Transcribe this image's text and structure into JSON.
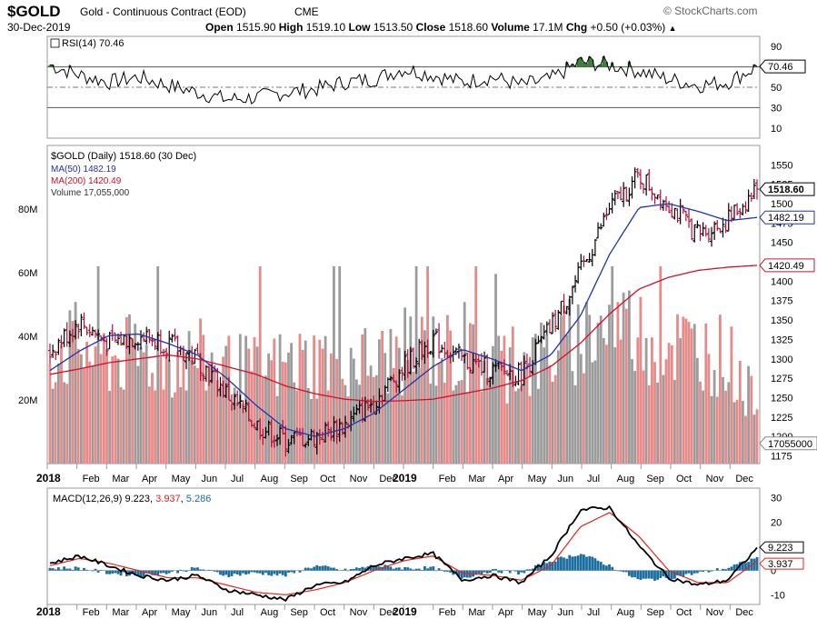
{
  "header": {
    "symbol": "$GOLD",
    "name": "Gold - Continuous Contract (EOD)",
    "exchange": "CME",
    "brand": "© StockCharts.com",
    "date": "30-Dec-2019",
    "open_label": "Open",
    "open": "1515.90",
    "high_label": "High",
    "high": "1519.10",
    "low_label": "Low",
    "low": "1513.50",
    "close_label": "Close",
    "close": "1518.60",
    "volume_label": "Volume",
    "volume": "17.1M",
    "chg_label": "Chg",
    "chg": "+0.50 (+0.03%)"
  },
  "colors": {
    "price_up": "#000000",
    "price_down": "#b0103a",
    "ma50": "#2233aa",
    "ma200": "#d0102a",
    "vol_up": "#9c9c9c",
    "vol_down": "#e88a8a",
    "macd_line": "#000000",
    "signal": "#e8231b",
    "hist": "#1a6ea0",
    "rsi_fill": "#3a7a3a"
  },
  "x_axis": {
    "labels": [
      "2018",
      "Feb",
      "Mar",
      "Apr",
      "May",
      "Jun",
      "Jul",
      "Aug",
      "Sep",
      "Oct",
      "Nov",
      "Dec",
      "2019",
      "Feb",
      "Mar",
      "Apr",
      "May",
      "Jun",
      "Jul",
      "Aug",
      "Sep",
      "Oct",
      "Nov",
      "Dec"
    ]
  },
  "chart_data": [
    {
      "type": "line",
      "title": "RSI(14) 70.46",
      "legend": "RSI(14) 70.46",
      "last_value_label": "70.46",
      "ylim": [
        0,
        100
      ],
      "y_ticks": [
        "90",
        "70",
        "50",
        "30",
        "10"
      ],
      "reference_lines": [
        70,
        50,
        30
      ],
      "monthly_rsi": [
        72,
        62,
        55,
        60,
        52,
        45,
        38,
        40,
        45,
        48,
        55,
        58,
        68,
        62,
        55,
        60,
        52,
        58,
        75,
        72,
        66,
        58,
        52,
        55,
        70
      ]
    },
    {
      "type": "line",
      "title": "$GOLD (Daily) 1518.60 (30 Dec)",
      "legend": [
        {
          "label": "$GOLD (Daily) 1518.60 (30 Dec)"
        },
        {
          "label": "MA(50) 1482.19"
        },
        {
          "label": "MA(200) 1420.49"
        },
        {
          "label": "Volume 17,055,000"
        }
      ],
      "ylim": [
        1165,
        1575
      ],
      "y_ticks": [
        "1550",
        "1525",
        "1500",
        "1475",
        "1450",
        "1425",
        "1400",
        "1375",
        "1350",
        "1325",
        "1300",
        "1275",
        "1250",
        "1225",
        "1200",
        "1175"
      ],
      "price_tags": [
        "1518.60",
        "1482.19",
        "1420.49"
      ],
      "x_months": [
        0,
        1,
        2,
        3,
        4,
        5,
        6,
        7,
        8,
        9,
        10,
        11,
        12,
        13,
        14,
        15,
        16,
        17,
        18,
        19,
        20,
        21,
        22,
        23,
        24
      ],
      "series": [
        {
          "name": "Close",
          "values": [
            1310,
            1348,
            1320,
            1330,
            1320,
            1300,
            1255,
            1215,
            1195,
            1200,
            1215,
            1245,
            1290,
            1325,
            1298,
            1285,
            1280,
            1340,
            1410,
            1495,
            1535,
            1500,
            1460,
            1478,
            1518.6
          ]
        },
        {
          "name": "MA(50)",
          "values": [
            1285,
            1310,
            1330,
            1332,
            1320,
            1305,
            1275,
            1240,
            1210,
            1200,
            1210,
            1230,
            1260,
            1290,
            1312,
            1300,
            1285,
            1305,
            1355,
            1435,
            1495,
            1500,
            1490,
            1478,
            1482.19
          ]
        },
        {
          "name": "MA(200)",
          "values": [
            1280,
            1287,
            1295,
            1300,
            1305,
            1300,
            1290,
            1280,
            1265,
            1255,
            1248,
            1245,
            1246,
            1248,
            1255,
            1262,
            1272,
            1290,
            1320,
            1358,
            1390,
            1405,
            1414,
            1418,
            1420.49
          ]
        }
      ],
      "volume": {
        "label": "Volume 17,055,000",
        "last_label": "17055000",
        "y_ticks": [
          "80M",
          "60M",
          "40M",
          "20M"
        ],
        "ylim_millions": [
          0,
          100
        ],
        "monthly_millions": [
          35,
          37,
          33,
          34,
          32,
          33,
          30,
          29,
          31,
          32,
          34,
          31,
          35,
          36,
          33,
          32,
          31,
          34,
          40,
          44,
          41,
          38,
          36,
          34,
          17.055
        ]
      }
    },
    {
      "type": "line",
      "title": "MACD(12,26,9) 9.223, 3.937, 5.286",
      "legend": {
        "name": "MACD(12,26,9)",
        "macd": "9.223",
        "signal": "3.937",
        "hist": "5.286"
      },
      "ylim": [
        -14,
        34
      ],
      "y_ticks": [
        "30",
        "20",
        "10",
        "0",
        "-10"
      ],
      "tags": [
        "9.223",
        "3.937"
      ],
      "macd": [
        3,
        6,
        2,
        -2,
        -4,
        -2,
        -8,
        -10,
        -12,
        -6,
        -5,
        2,
        5,
        7,
        -4,
        -2,
        -5,
        6,
        25,
        26,
        10,
        -3,
        -6,
        -4,
        9.223
      ],
      "signal": [
        2,
        5,
        3,
        0,
        -3,
        -3,
        -6,
        -9,
        -10,
        -8,
        -5,
        0,
        4,
        6,
        -1,
        -2,
        -4,
        2,
        18,
        24,
        14,
        0,
        -5,
        -5,
        3.937
      ]
    }
  ]
}
